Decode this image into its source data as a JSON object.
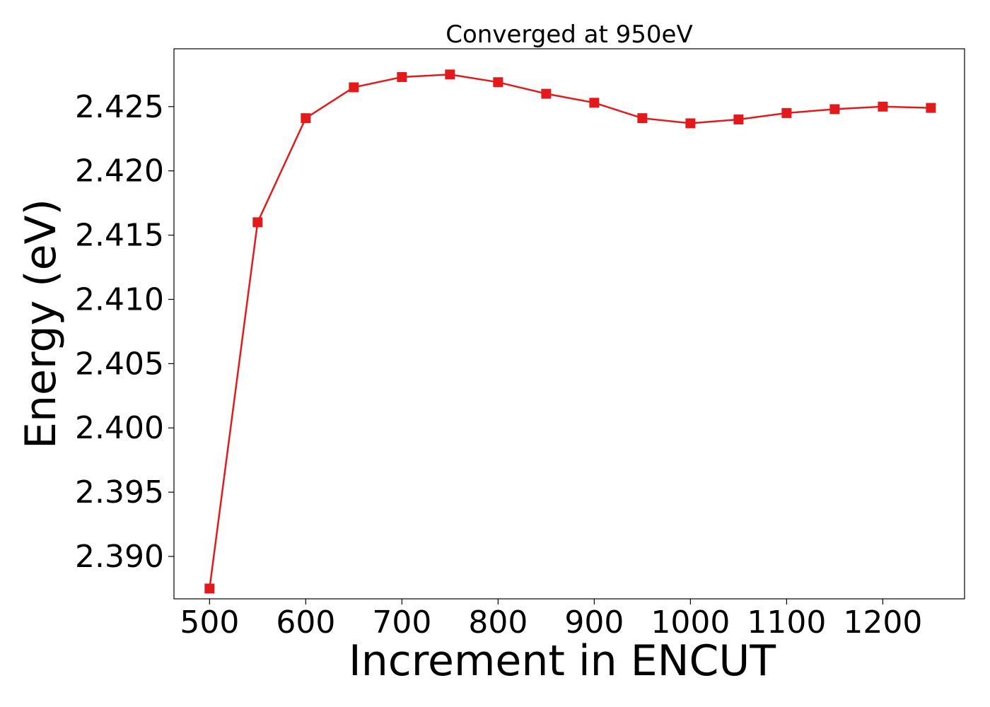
{
  "chart_data": {
    "type": "line",
    "title": "Converged at 950eV",
    "xlabel": "Increment in ENCUT",
    "ylabel": "Energy (eV)",
    "xlim": [
      463,
      1285
    ],
    "ylim": [
      2.3867,
      2.4295
    ],
    "x_ticks": [
      500,
      600,
      700,
      800,
      900,
      1000,
      1100,
      1200
    ],
    "y_ticks": [
      2.39,
      2.395,
      2.4,
      2.405,
      2.41,
      2.415,
      2.42,
      2.425
    ],
    "grid": false,
    "series": [
      {
        "color": "#e31a1c",
        "marker": "square",
        "x": [
          500,
          550,
          600,
          650,
          700,
          750,
          800,
          850,
          900,
          950,
          1000,
          1050,
          1100,
          1150,
          1200,
          1250
        ],
        "y": [
          2.3875,
          2.416,
          2.4241,
          2.4265,
          2.4273,
          2.4275,
          2.4269,
          2.426,
          2.4253,
          2.4241,
          2.4237,
          2.424,
          2.4245,
          2.4248,
          2.425,
          2.4249
        ]
      }
    ]
  }
}
